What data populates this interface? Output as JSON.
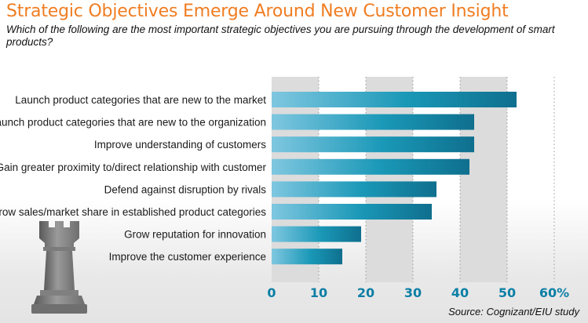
{
  "title": "Strategic Objectives Emerge Around New Customer Insight",
  "subtitle": "Which of the following are the most important strategic objectives you are pursuing through the development of smart products?",
  "source": "Source: Cognizant/EIU study",
  "colors": {
    "title": "#f07d22",
    "bar_light": "#7fc7e0",
    "bar_mid": "#1a98b7",
    "bar_dark": "#0f6f8e",
    "axis_tick": "#0c7fa6",
    "band": "#dcdcdc"
  },
  "decoration": {
    "icon": "chess-rook-icon"
  },
  "chart_data": {
    "type": "bar",
    "orientation": "horizontal",
    "categories": [
      "Launch product categories that are new to the market",
      "Launch product categories that are new to the organization",
      "Improve understanding of customers",
      "Gain greater proximity to/direct relationship with customer",
      "Defend against disruption by rivals",
      "Grow sales/market share in established product categories",
      "Grow reputation for innovation",
      "Improve the customer experience"
    ],
    "values": [
      52,
      43,
      43,
      42,
      35,
      34,
      19,
      15
    ],
    "xlim": [
      0,
      60
    ],
    "xticks": [
      "0",
      "10",
      "20",
      "30",
      "40",
      "50",
      "60%"
    ],
    "grid": true,
    "xlabel": "",
    "ylabel": ""
  }
}
